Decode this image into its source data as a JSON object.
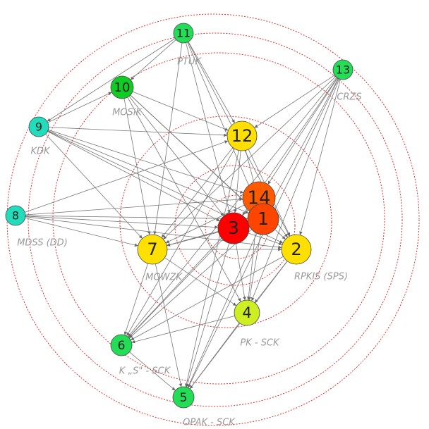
{
  "nodes": [
    {
      "label": "11",
      "caption": "PTUK"
    },
    {
      "label": "13",
      "caption": "CRZS"
    },
    {
      "label": "10",
      "caption": "MOSiK"
    },
    {
      "label": "9",
      "caption": "KDK"
    },
    {
      "label": "8",
      "caption": "MDSS (DD)"
    },
    {
      "label": "12"
    },
    {
      "label": "14"
    },
    {
      "label": "1"
    },
    {
      "label": "3"
    },
    {
      "label": "7",
      "caption": "MOWZK"
    },
    {
      "label": "2",
      "caption": "RPKIS (SPS)"
    },
    {
      "label": "4",
      "caption": "PK - SCK"
    },
    {
      "label": "6",
      "caption": "K „S\" - SCK"
    },
    {
      "label": "5",
      "caption": "OPAK - SCK"
    }
  ]
}
